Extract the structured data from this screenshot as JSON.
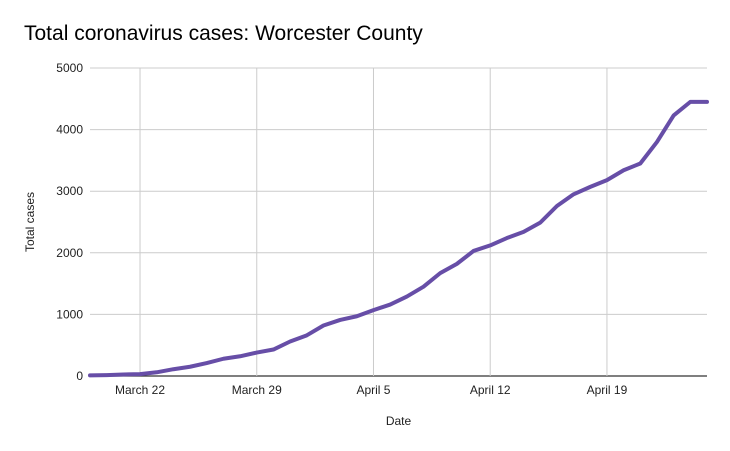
{
  "chart_data": {
    "type": "line",
    "title": "Total coronavirus cases: Worcester County",
    "xlabel": "Date",
    "ylabel": "Total cases",
    "ylim": [
      0,
      5000
    ],
    "y_ticks": [
      0,
      1000,
      2000,
      3000,
      4000,
      5000
    ],
    "x_range": [
      "2020-03-19",
      "2020-04-25"
    ],
    "x_ticks": [
      {
        "date": "2020-03-22",
        "label": "March 22"
      },
      {
        "date": "2020-03-29",
        "label": "March 29"
      },
      {
        "date": "2020-04-05",
        "label": "April 5"
      },
      {
        "date": "2020-04-12",
        "label": "April 12"
      },
      {
        "date": "2020-04-19",
        "label": "April 19"
      }
    ],
    "grid": true,
    "legend": "none",
    "series_color": "#674ea7",
    "series": [
      {
        "x": [
          "2020-03-19",
          "2020-03-20",
          "2020-03-21",
          "2020-03-22",
          "2020-03-23",
          "2020-03-24",
          "2020-03-25",
          "2020-03-26",
          "2020-03-27",
          "2020-03-28",
          "2020-03-29",
          "2020-03-30",
          "2020-03-31",
          "2020-04-01",
          "2020-04-02",
          "2020-04-03",
          "2020-04-04",
          "2020-04-05",
          "2020-04-06",
          "2020-04-07",
          "2020-04-08",
          "2020-04-09",
          "2020-04-10",
          "2020-04-11",
          "2020-04-12",
          "2020-04-13",
          "2020-04-14",
          "2020-04-15",
          "2020-04-16",
          "2020-04-17",
          "2020-04-18",
          "2020-04-19",
          "2020-04-20",
          "2020-04-21",
          "2020-04-22",
          "2020-04-23",
          "2020-04-24",
          "2020-04-25"
        ],
        "values": [
          10,
          15,
          25,
          30,
          60,
          110,
          150,
          210,
          280,
          320,
          380,
          430,
          560,
          660,
          820,
          910,
          970,
          1070,
          1160,
          1290,
          1450,
          1670,
          1820,
          2030,
          2120,
          2240,
          2340,
          2490,
          2760,
          2950,
          3070,
          3180,
          3340,
          3450,
          3800,
          4230,
          4450,
          4450
        ]
      }
    ]
  }
}
